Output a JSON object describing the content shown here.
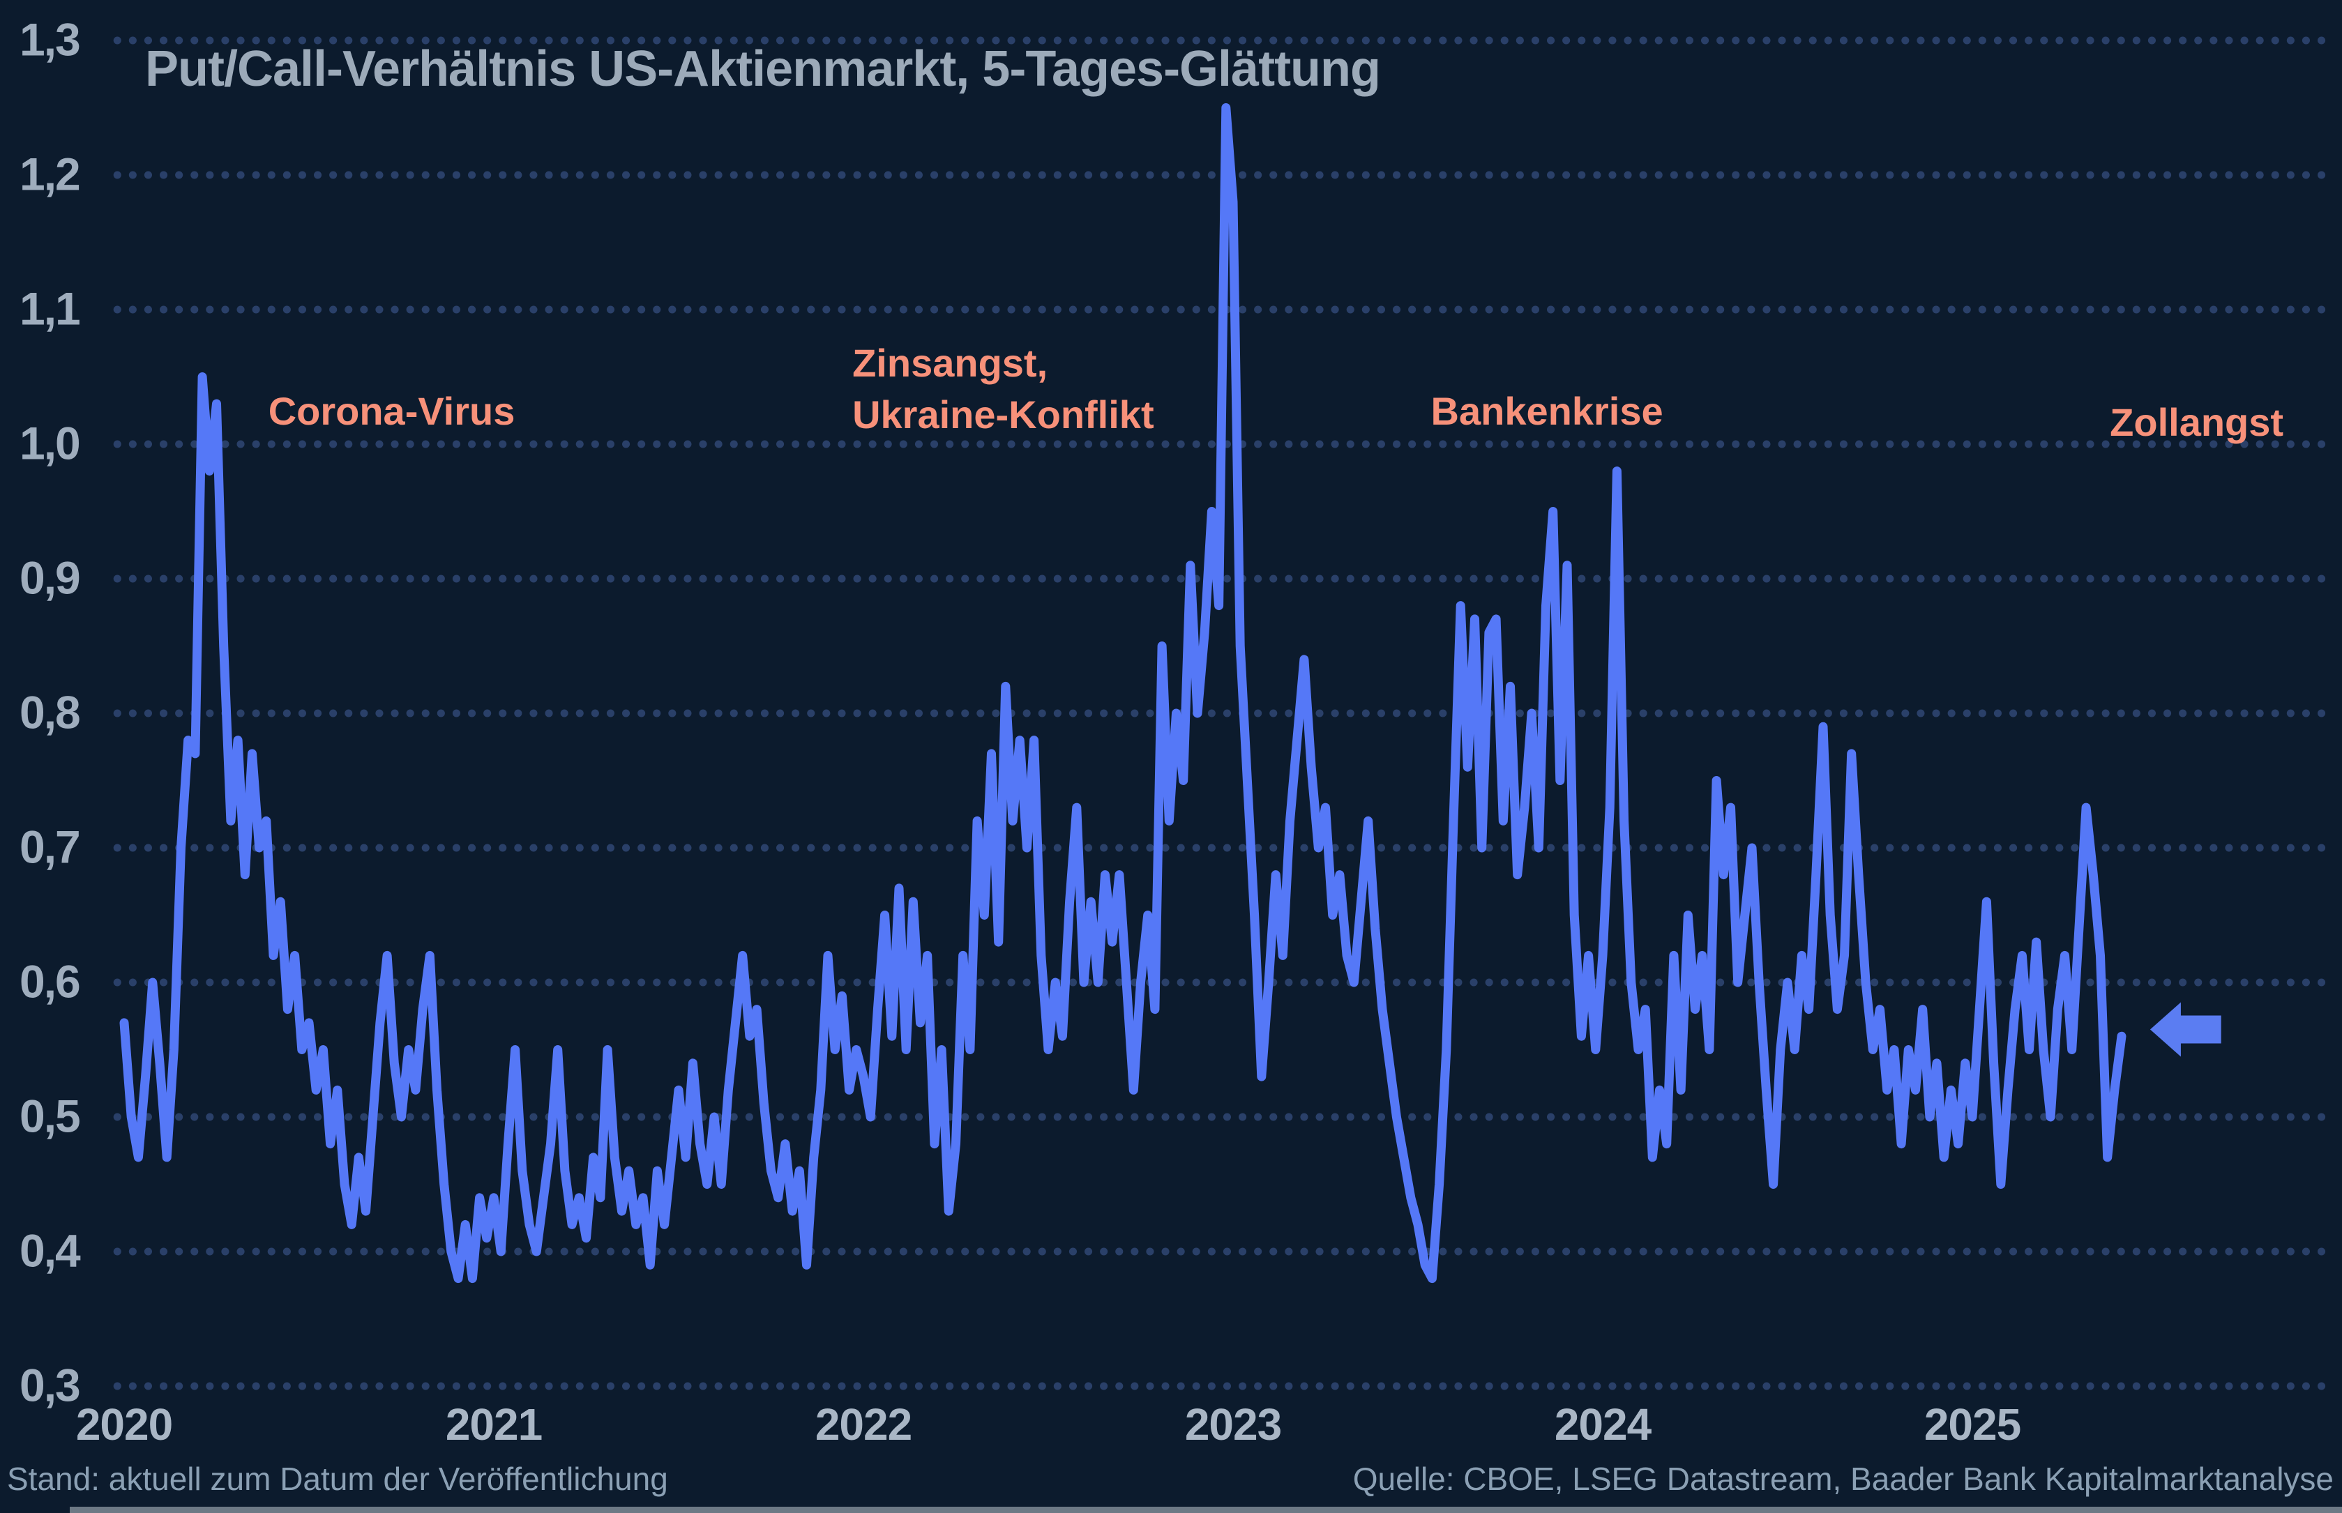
{
  "title": "Put/Call-Verhältnis US-Aktienmarkt, 5-Tages-Glättung",
  "footer": {
    "left": "Stand: aktuell zum Datum der Veröffentlichung",
    "right": "Quelle: CBOE, LSEG Datastream, Baader Bank Kapitalmarktanalyse"
  },
  "colors": {
    "background": "#0c1b2d",
    "line": "#5578f7",
    "grid_dots": "#2a4069",
    "title_text": "#9caab9",
    "y_axis_text": "#9fadbd",
    "x_axis_text": "#a9b6c5",
    "annotation_text": "#f7917a",
    "footer_text": "#8ba0b4",
    "arrow": "#5b7df2",
    "bottom_bar": "#97a1ab"
  },
  "chart_data": {
    "type": "line",
    "title": "Put/Call-Verhältnis US-Aktienmarkt, 5-Tages-Glättung",
    "xlabel": "",
    "ylabel": "",
    "ylim": [
      0.3,
      1.3
    ],
    "xlim": [
      2020.0,
      2025.55
    ],
    "grid": "horizontal dotted",
    "legend": "none",
    "y_ticks": [
      {
        "value": 1.3,
        "label": "1,3"
      },
      {
        "value": 1.2,
        "label": "1,2"
      },
      {
        "value": 1.1,
        "label": "1,1"
      },
      {
        "value": 1.0,
        "label": "1,0"
      },
      {
        "value": 0.9,
        "label": "0,9"
      },
      {
        "value": 0.8,
        "label": "0,8"
      },
      {
        "value": 0.7,
        "label": "0,7"
      },
      {
        "value": 0.6,
        "label": "0,6"
      },
      {
        "value": 0.5,
        "label": "0,5"
      },
      {
        "value": 0.4,
        "label": "0,4"
      },
      {
        "value": 0.3,
        "label": "0,3"
      }
    ],
    "x_ticks": [
      {
        "value": 2020,
        "label": "2020"
      },
      {
        "value": 2021,
        "label": "2021"
      },
      {
        "value": 2022,
        "label": "2022"
      },
      {
        "value": 2023,
        "label": "2023"
      },
      {
        "value": 2024,
        "label": "2024"
      },
      {
        "value": 2025,
        "label": "2025"
      }
    ],
    "annotations": [
      {
        "text": "Corona-Virus",
        "x_year": 2020.39,
        "y_value": 1.02
      },
      {
        "text": "Zinsangst,\nUkraine-Konflikt",
        "x_year": 2021.97,
        "y_value": 1.056
      },
      {
        "text": "Bankenkrise",
        "x_year": 2023.535,
        "y_value": 1.02
      },
      {
        "text": "Zollangst",
        "x_year": 2025.372,
        "y_value": 1.012
      }
    ],
    "arrow_marker": {
      "tip_year": 2025.481,
      "tail_year": 2025.673,
      "y_value": 0.565,
      "direction": "left"
    },
    "series": [
      {
        "name": "Put/Call-Verhältnis (5-Tages-Glättung)",
        "start_year": 2020.0,
        "step_years": 0.0192308,
        "values": [
          0.57,
          0.5,
          0.47,
          0.53,
          0.6,
          0.54,
          0.47,
          0.55,
          0.7,
          0.78,
          0.77,
          1.05,
          0.98,
          1.03,
          0.85,
          0.72,
          0.78,
          0.68,
          0.77,
          0.7,
          0.72,
          0.62,
          0.66,
          0.58,
          0.62,
          0.55,
          0.57,
          0.52,
          0.55,
          0.48,
          0.52,
          0.45,
          0.42,
          0.47,
          0.43,
          0.5,
          0.57,
          0.62,
          0.54,
          0.5,
          0.55,
          0.52,
          0.58,
          0.62,
          0.52,
          0.45,
          0.4,
          0.38,
          0.42,
          0.38,
          0.44,
          0.41,
          0.44,
          0.4,
          0.48,
          0.55,
          0.46,
          0.42,
          0.4,
          0.44,
          0.48,
          0.55,
          0.46,
          0.42,
          0.44,
          0.41,
          0.47,
          0.44,
          0.55,
          0.47,
          0.43,
          0.46,
          0.42,
          0.44,
          0.39,
          0.46,
          0.42,
          0.47,
          0.52,
          0.47,
          0.54,
          0.48,
          0.45,
          0.5,
          0.45,
          0.52,
          0.57,
          0.62,
          0.56,
          0.58,
          0.51,
          0.46,
          0.44,
          0.48,
          0.43,
          0.46,
          0.39,
          0.47,
          0.52,
          0.62,
          0.55,
          0.59,
          0.52,
          0.55,
          0.53,
          0.5,
          0.58,
          0.65,
          0.56,
          0.67,
          0.55,
          0.66,
          0.57,
          0.62,
          0.48,
          0.55,
          0.43,
          0.48,
          0.62,
          0.55,
          0.72,
          0.65,
          0.77,
          0.63,
          0.82,
          0.72,
          0.78,
          0.7,
          0.78,
          0.62,
          0.55,
          0.6,
          0.56,
          0.66,
          0.73,
          0.6,
          0.66,
          0.6,
          0.68,
          0.63,
          0.68,
          0.6,
          0.52,
          0.6,
          0.65,
          0.58,
          0.85,
          0.72,
          0.8,
          0.75,
          0.91,
          0.8,
          0.86,
          0.95,
          0.88,
          1.25,
          1.18,
          0.85,
          0.75,
          0.65,
          0.53,
          0.6,
          0.68,
          0.62,
          0.72,
          0.78,
          0.84,
          0.76,
          0.7,
          0.73,
          0.65,
          0.68,
          0.62,
          0.6,
          0.66,
          0.72,
          0.64,
          0.58,
          0.54,
          0.5,
          0.47,
          0.44,
          0.42,
          0.39,
          0.38,
          0.45,
          0.55,
          0.72,
          0.88,
          0.76,
          0.87,
          0.7,
          0.86,
          0.87,
          0.72,
          0.82,
          0.68,
          0.73,
          0.8,
          0.7,
          0.88,
          0.95,
          0.75,
          0.91,
          0.65,
          0.56,
          0.62,
          0.55,
          0.62,
          0.73,
          0.98,
          0.72,
          0.6,
          0.55,
          0.58,
          0.47,
          0.52,
          0.48,
          0.62,
          0.52,
          0.65,
          0.58,
          0.62,
          0.55,
          0.75,
          0.68,
          0.73,
          0.6,
          0.65,
          0.7,
          0.6,
          0.52,
          0.45,
          0.55,
          0.6,
          0.55,
          0.62,
          0.58,
          0.68,
          0.79,
          0.65,
          0.58,
          0.62,
          0.77,
          0.68,
          0.6,
          0.55,
          0.58,
          0.52,
          0.55,
          0.48,
          0.55,
          0.52,
          0.58,
          0.5,
          0.54,
          0.47,
          0.52,
          0.48,
          0.54,
          0.5,
          0.58,
          0.66,
          0.54,
          0.45,
          0.52,
          0.58,
          0.62,
          0.55,
          0.63,
          0.55,
          0.5,
          0.58,
          0.62,
          0.55,
          0.64,
          0.73,
          0.68,
          0.62,
          0.47,
          0.52,
          0.56
        ]
      }
    ]
  }
}
